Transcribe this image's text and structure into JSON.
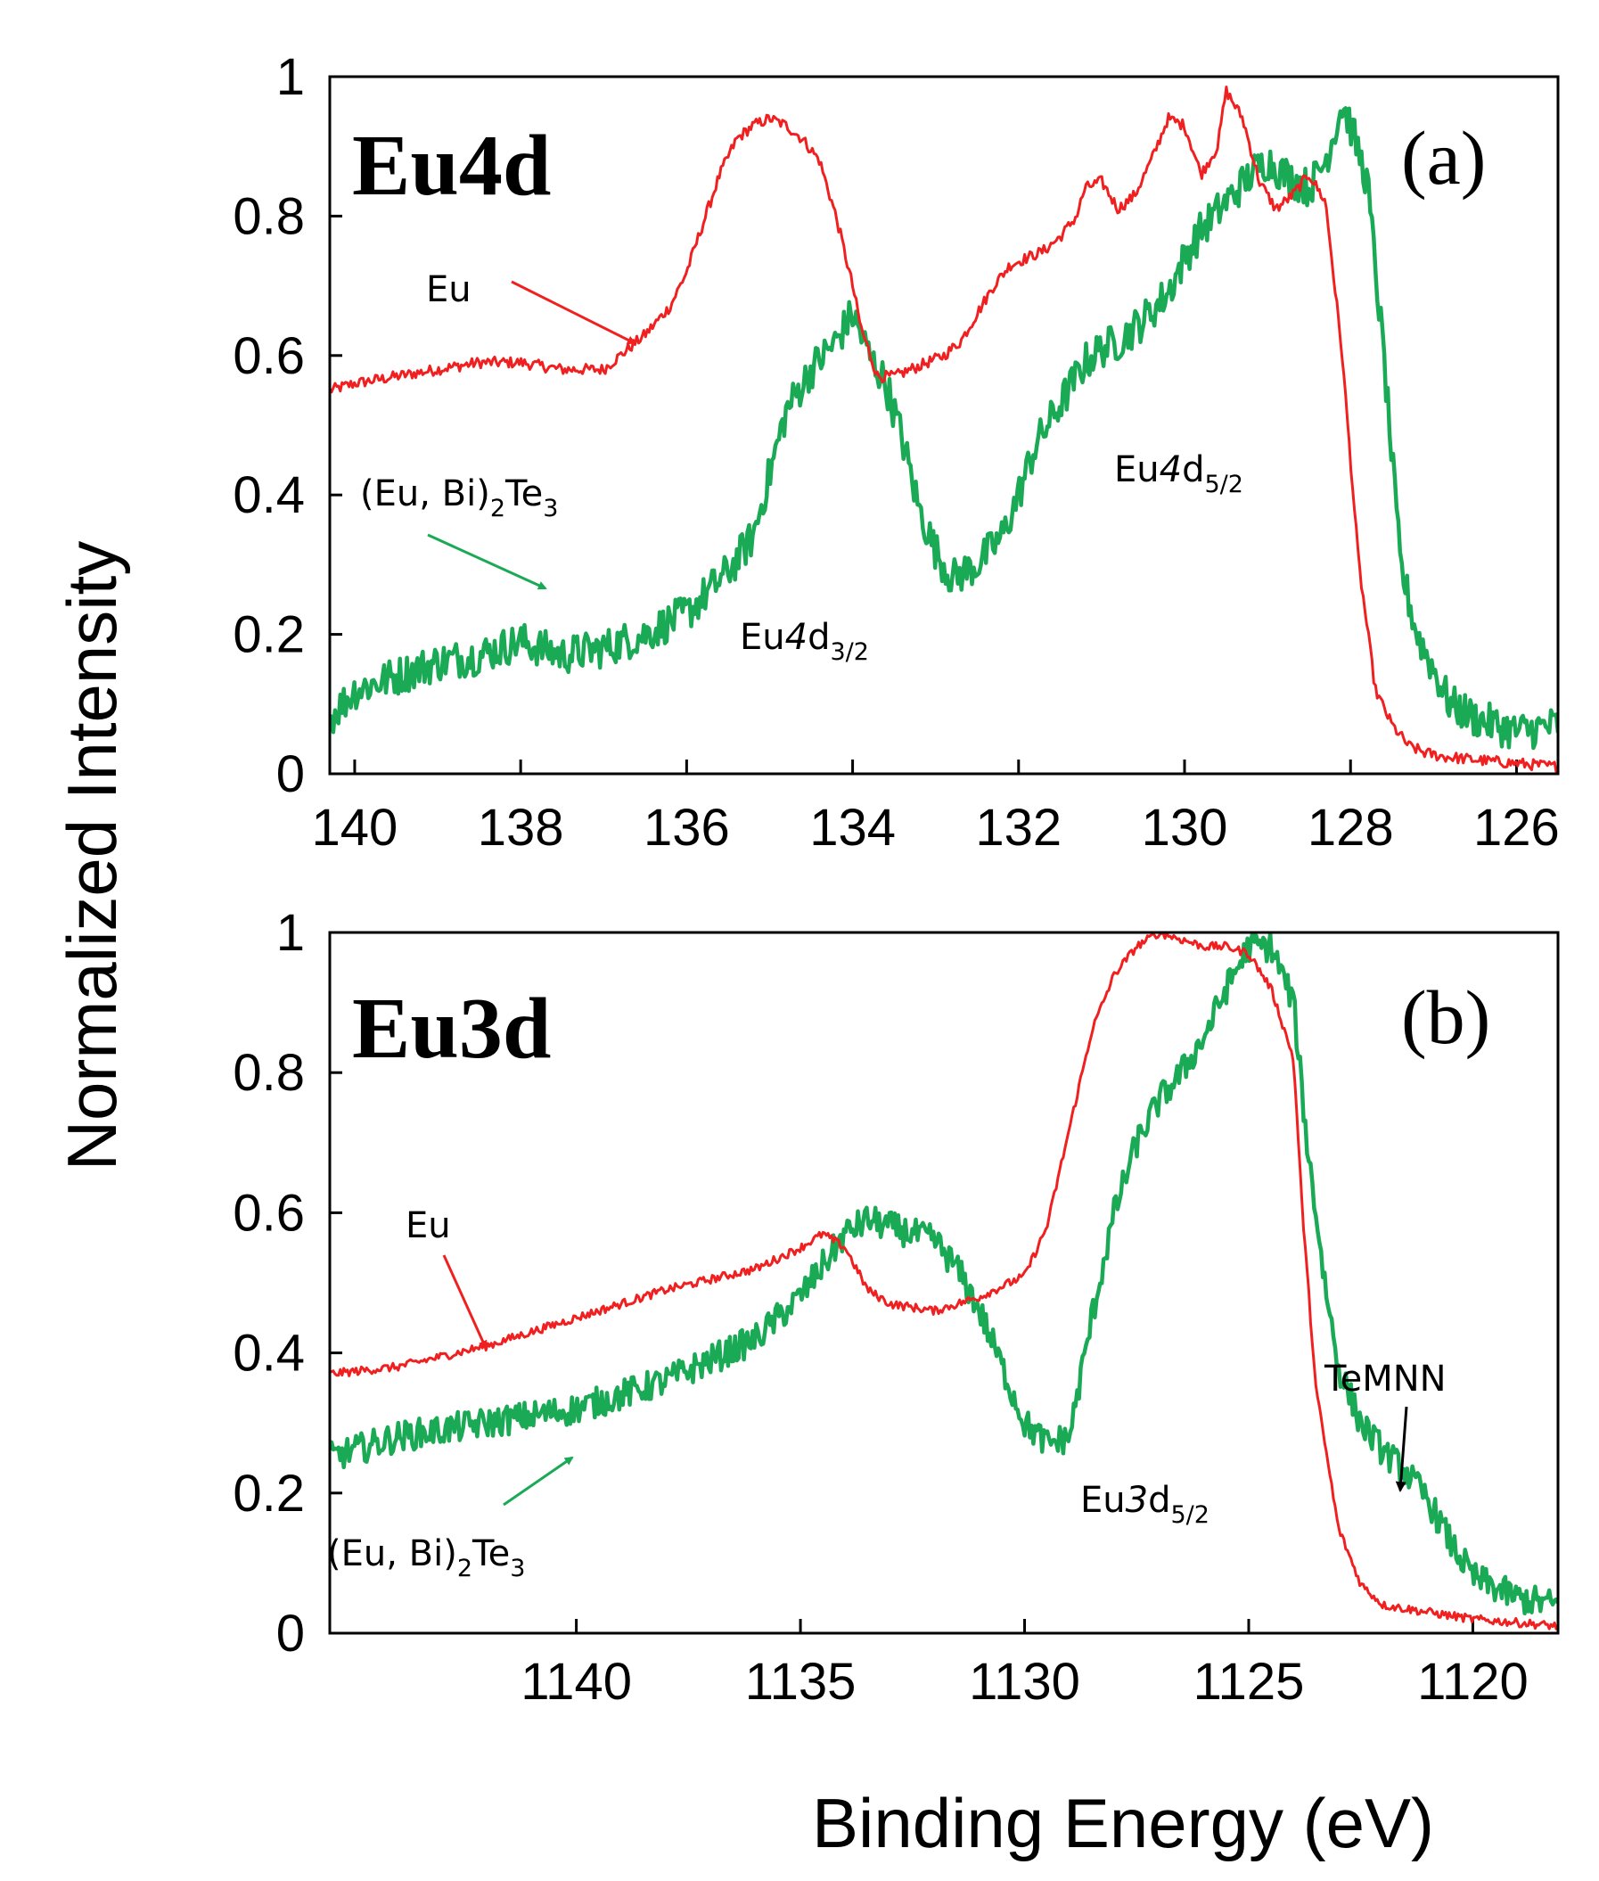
{
  "figure": {
    "ylabel": "Normalized Intensity",
    "xlabel": "Binding Energy (eV)"
  },
  "colors": {
    "eu": "#f02020",
    "eubite": "#1aaa55",
    "black": "#000000"
  },
  "chart_data": [
    {
      "type": "line",
      "panel": "(a)",
      "title": "Eu4d",
      "xlabel": "Binding Energy (eV)",
      "ylabel": "Normalized Intensity",
      "xlim": [
        140.3,
        125.5
      ],
      "ylim": [
        0,
        1
      ],
      "xticks": [
        140,
        138,
        136,
        134,
        132,
        130,
        128,
        126
      ],
      "yticks": [
        0,
        0.2,
        0.4,
        0.6,
        0.8,
        1
      ],
      "ytick_labels": [
        "0",
        "0.2",
        "0.4",
        "0.6",
        "0.8",
        "1"
      ],
      "series": [
        {
          "name": "Eu",
          "color": "#f02020",
          "x": [
            140.3,
            140,
            139.5,
            139,
            138.5,
            138,
            137.5,
            137,
            136.8,
            136.5,
            136.2,
            136,
            135.8,
            135.6,
            135.4,
            135.2,
            135,
            134.8,
            134.6,
            134.4,
            134.2,
            134,
            133.9,
            133.7,
            133.5,
            133.3,
            133.1,
            132.9,
            132.7,
            132.5,
            132.3,
            132.1,
            131.9,
            131.7,
            131.5,
            131.3,
            131.2,
            131,
            130.8,
            130.6,
            130.4,
            130.2,
            130,
            129.8,
            129.6,
            129.5,
            129.3,
            129.1,
            128.9,
            128.7,
            128.5,
            128.3,
            128.1,
            127.9,
            127.7,
            127.5,
            127.3,
            127.1,
            126.9,
            126.5,
            126,
            125.5
          ],
          "y": [
            0.55,
            0.56,
            0.57,
            0.58,
            0.59,
            0.59,
            0.58,
            0.58,
            0.6,
            0.63,
            0.67,
            0.72,
            0.79,
            0.86,
            0.91,
            0.93,
            0.94,
            0.93,
            0.91,
            0.88,
            0.8,
            0.7,
            0.64,
            0.57,
            0.57,
            0.58,
            0.59,
            0.6,
            0.62,
            0.66,
            0.7,
            0.73,
            0.74,
            0.75,
            0.77,
            0.8,
            0.84,
            0.85,
            0.81,
            0.83,
            0.88,
            0.94,
            0.93,
            0.86,
            0.9,
            0.98,
            0.94,
            0.85,
            0.81,
            0.83,
            0.86,
            0.82,
            0.6,
            0.3,
            0.12,
            0.07,
            0.04,
            0.03,
            0.025,
            0.02,
            0.015,
            0.01
          ],
          "noise": 0.008
        },
        {
          "name": "(Eu, Bi)2Te3",
          "color": "#1aaa55",
          "x": [
            140.3,
            140,
            139.5,
            139,
            138.5,
            138,
            137.5,
            137,
            136.5,
            136,
            135.5,
            135.2,
            135,
            134.8,
            134.5,
            134.2,
            134,
            133.8,
            133.6,
            133.4,
            133.2,
            133,
            132.8,
            132.5,
            132.2,
            132,
            131.8,
            131.5,
            131.2,
            131,
            130.8,
            130.5,
            130.2,
            130,
            129.8,
            129.5,
            129.2,
            129,
            128.8,
            128.5,
            128.3,
            128.1,
            128,
            127.8,
            127.6,
            127.4,
            127.2,
            127,
            126.8,
            126.5,
            126,
            125.5
          ],
          "y": [
            0.08,
            0.12,
            0.14,
            0.16,
            0.17,
            0.19,
            0.17,
            0.18,
            0.2,
            0.23,
            0.29,
            0.34,
            0.43,
            0.52,
            0.58,
            0.62,
            0.66,
            0.6,
            0.56,
            0.48,
            0.38,
            0.32,
            0.28,
            0.3,
            0.34,
            0.4,
            0.47,
            0.53,
            0.59,
            0.61,
            0.62,
            0.65,
            0.69,
            0.74,
            0.78,
            0.82,
            0.86,
            0.88,
            0.86,
            0.84,
            0.88,
            0.96,
            0.93,
            0.85,
            0.6,
            0.3,
            0.2,
            0.15,
            0.1,
            0.08,
            0.06,
            0.07
          ],
          "noise": 0.028
        }
      ],
      "annotations": {
        "eu_label": "Eu",
        "eubite_label": "(Eu, Bi)",
        "eubite_sub2": "2",
        "eubite_te": "Te",
        "eubite_sub3": "3",
        "peak1_base": "Eu",
        "peak1_italic": "4",
        "peak1_d": "d",
        "peak1_sub": "3/2",
        "peak2_base": "Eu",
        "peak2_italic": "4",
        "peak2_d": "d",
        "peak2_sub": "5/2"
      }
    },
    {
      "type": "line",
      "panel": "(b)",
      "title": "Eu3d",
      "xlabel": "Binding Energy (eV)",
      "ylabel": "Normalized Intensity",
      "xlim": [
        1145.5,
        1118.1
      ],
      "ylim": [
        0,
        1
      ],
      "xticks": [
        1140,
        1135,
        1130,
        1125,
        1120
      ],
      "yticks": [
        0,
        0.2,
        0.4,
        0.6,
        0.8,
        1
      ],
      "ytick_labels": [
        "0",
        "0.2",
        "0.4",
        "0.6",
        "0.8",
        "1"
      ],
      "series": [
        {
          "name": "Eu",
          "color": "#f02020",
          "x": [
            1145.5,
            1144,
            1142,
            1140,
            1138,
            1136,
            1135,
            1134.5,
            1134,
            1133.5,
            1133,
            1132,
            1131,
            1130,
            1129.5,
            1129,
            1128.5,
            1128,
            1127.5,
            1127,
            1126.5,
            1126,
            1125.5,
            1125,
            1124.5,
            1124,
            1123.8,
            1123.5,
            1123,
            1122.5,
            1122,
            1121,
            1120,
            1119,
            1118.1
          ],
          "y": [
            0.37,
            0.38,
            0.41,
            0.45,
            0.49,
            0.52,
            0.55,
            0.57,
            0.55,
            0.49,
            0.47,
            0.46,
            0.48,
            0.51,
            0.58,
            0.72,
            0.86,
            0.94,
            0.98,
            1.0,
            0.99,
            0.98,
            0.98,
            0.97,
            0.92,
            0.82,
            0.6,
            0.35,
            0.15,
            0.07,
            0.04,
            0.03,
            0.02,
            0.015,
            0.01
          ],
          "noise": 0.006
        },
        {
          "name": "(Eu, Bi)2Te3",
          "color": "#1aaa55",
          "x": [
            1145.5,
            1144,
            1142,
            1140,
            1138,
            1136,
            1135,
            1134,
            1133.5,
            1133,
            1132.5,
            1132,
            1131.5,
            1131,
            1130.5,
            1130,
            1129.5,
            1129,
            1128.5,
            1128,
            1127.5,
            1127,
            1126.5,
            1126,
            1125.5,
            1125,
            1124.5,
            1124,
            1123.7,
            1123.3,
            1123,
            1122.5,
            1122,
            1121.5,
            1121,
            1120.5,
            1120,
            1119,
            1118.1
          ],
          "y": [
            0.25,
            0.28,
            0.3,
            0.32,
            0.36,
            0.42,
            0.48,
            0.57,
            0.59,
            0.58,
            0.57,
            0.56,
            0.52,
            0.46,
            0.38,
            0.3,
            0.27,
            0.28,
            0.45,
            0.6,
            0.7,
            0.76,
            0.8,
            0.85,
            0.92,
            0.98,
            0.98,
            0.9,
            0.7,
            0.5,
            0.38,
            0.3,
            0.26,
            0.23,
            0.19,
            0.13,
            0.08,
            0.05,
            0.04
          ],
          "noise": 0.022
        }
      ],
      "annotations": {
        "eu_label": "Eu",
        "eubite_label": "(Eu, Bi)",
        "eubite_sub2": "2",
        "eubite_te": "Te",
        "eubite_sub3": "3",
        "peak_base": "Eu",
        "peak_italic": "3",
        "peak_d": "d",
        "peak_sub": "5/2",
        "temnn": "TeMNN"
      }
    }
  ]
}
